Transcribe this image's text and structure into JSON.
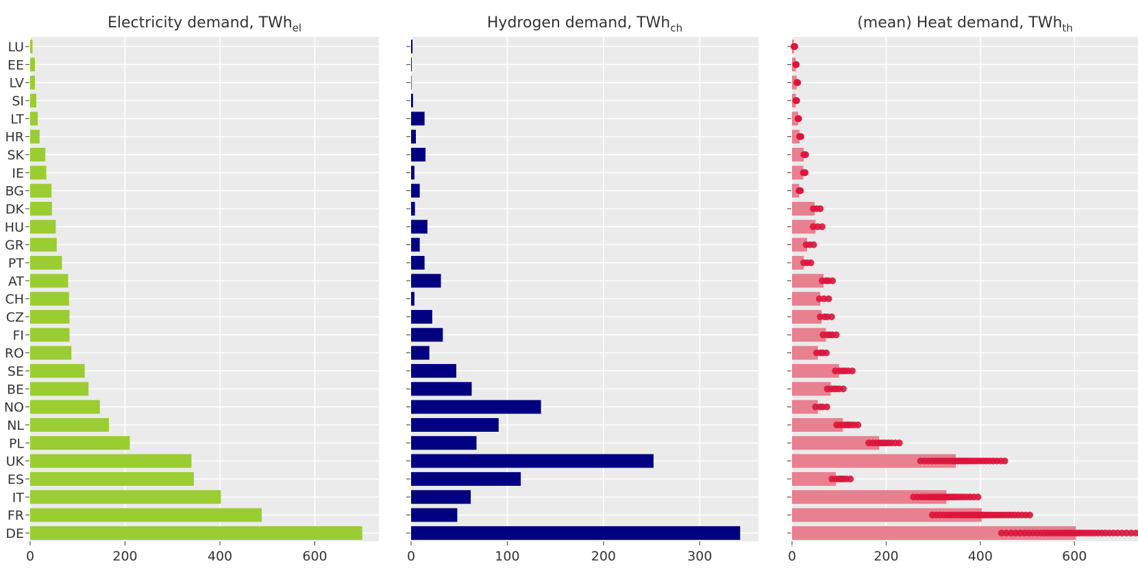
{
  "chart_data": [
    {
      "type": "bar",
      "orientation": "horizontal",
      "title_main": "Electricity demand, TWh",
      "title_sub": "el",
      "xlim": [
        0,
        735
      ],
      "xticks": [
        "0",
        "200",
        "400",
        "600"
      ],
      "color": "#9acd32",
      "categories": [
        "LU",
        "EE",
        "LV",
        "SI",
        "LT",
        "HR",
        "SK",
        "IE",
        "BG",
        "DK",
        "HU",
        "GR",
        "PT",
        "AT",
        "CH",
        "CZ",
        "FI",
        "RO",
        "SE",
        "BE",
        "NO",
        "NL",
        "PL",
        "UK",
        "ES",
        "IT",
        "FR",
        "DE"
      ],
      "values": [
        5,
        10,
        10,
        13,
        16,
        20,
        32,
        34,
        45,
        46,
        54,
        56,
        67,
        80,
        82,
        83,
        83,
        87,
        115,
        123,
        147,
        166,
        210,
        340,
        345,
        402,
        488,
        700
      ]
    },
    {
      "type": "bar",
      "orientation": "horizontal",
      "title_main": "Hydrogen demand, TWh",
      "title_sub": "ch",
      "xlim": [
        0,
        361
      ],
      "xticks": [
        "0",
        "100",
        "200",
        "300"
      ],
      "color": "#000080",
      "categories": [
        "LU",
        "EE",
        "LV",
        "SI",
        "LT",
        "HR",
        "SK",
        "IE",
        "BG",
        "DK",
        "HU",
        "GR",
        "PT",
        "AT",
        "CH",
        "CZ",
        "FI",
        "RO",
        "SE",
        "BE",
        "NO",
        "NL",
        "PL",
        "UK",
        "ES",
        "IT",
        "FR",
        "DE"
      ],
      "values": [
        1.5,
        0.5,
        0,
        2,
        14,
        5,
        15,
        3.5,
        9,
        4,
        17,
        9,
        14,
        31,
        3.5,
        22,
        33,
        19,
        47,
        63,
        135,
        91,
        68,
        252,
        114,
        62,
        48,
        342
      ]
    },
    {
      "type": "scatter",
      "title_main": "(mean) Heat demand, TWh",
      "title_sub": "th",
      "xlim": [
        0,
        735
      ],
      "xticks": [
        "0",
        "200",
        "400",
        "600"
      ],
      "bar_color": "#e8808f",
      "point_color": "#dc143c",
      "categories": [
        "LU",
        "EE",
        "LV",
        "SI",
        "LT",
        "HR",
        "SK",
        "IE",
        "BG",
        "DK",
        "HU",
        "GR",
        "PT",
        "AT",
        "CH",
        "CZ",
        "FI",
        "RO",
        "SE",
        "BE",
        "NO",
        "NL",
        "PL",
        "UK",
        "ES",
        "IT",
        "FR",
        "DE"
      ],
      "mean_values": [
        4,
        8,
        10,
        8,
        13,
        16,
        25,
        24,
        15,
        48,
        50,
        32,
        25,
        67,
        60,
        63,
        72,
        55,
        100,
        82,
        55,
        108,
        185,
        348,
        93,
        328,
        403,
        603
      ],
      "range_min": [
        4,
        8,
        10,
        8,
        13,
        16,
        25,
        24,
        15,
        45,
        45,
        30,
        25,
        64,
        58,
        60,
        66,
        52,
        92,
        75,
        50,
        95,
        163,
        273,
        85,
        258,
        298,
        445
      ],
      "range_max": [
        6,
        9,
        12,
        10,
        14,
        19,
        29,
        28,
        18,
        60,
        64,
        46,
        40,
        86,
        78,
        84,
        94,
        73,
        128,
        109,
        74,
        140,
        228,
        452,
        124,
        395,
        505,
        741
      ]
    }
  ]
}
